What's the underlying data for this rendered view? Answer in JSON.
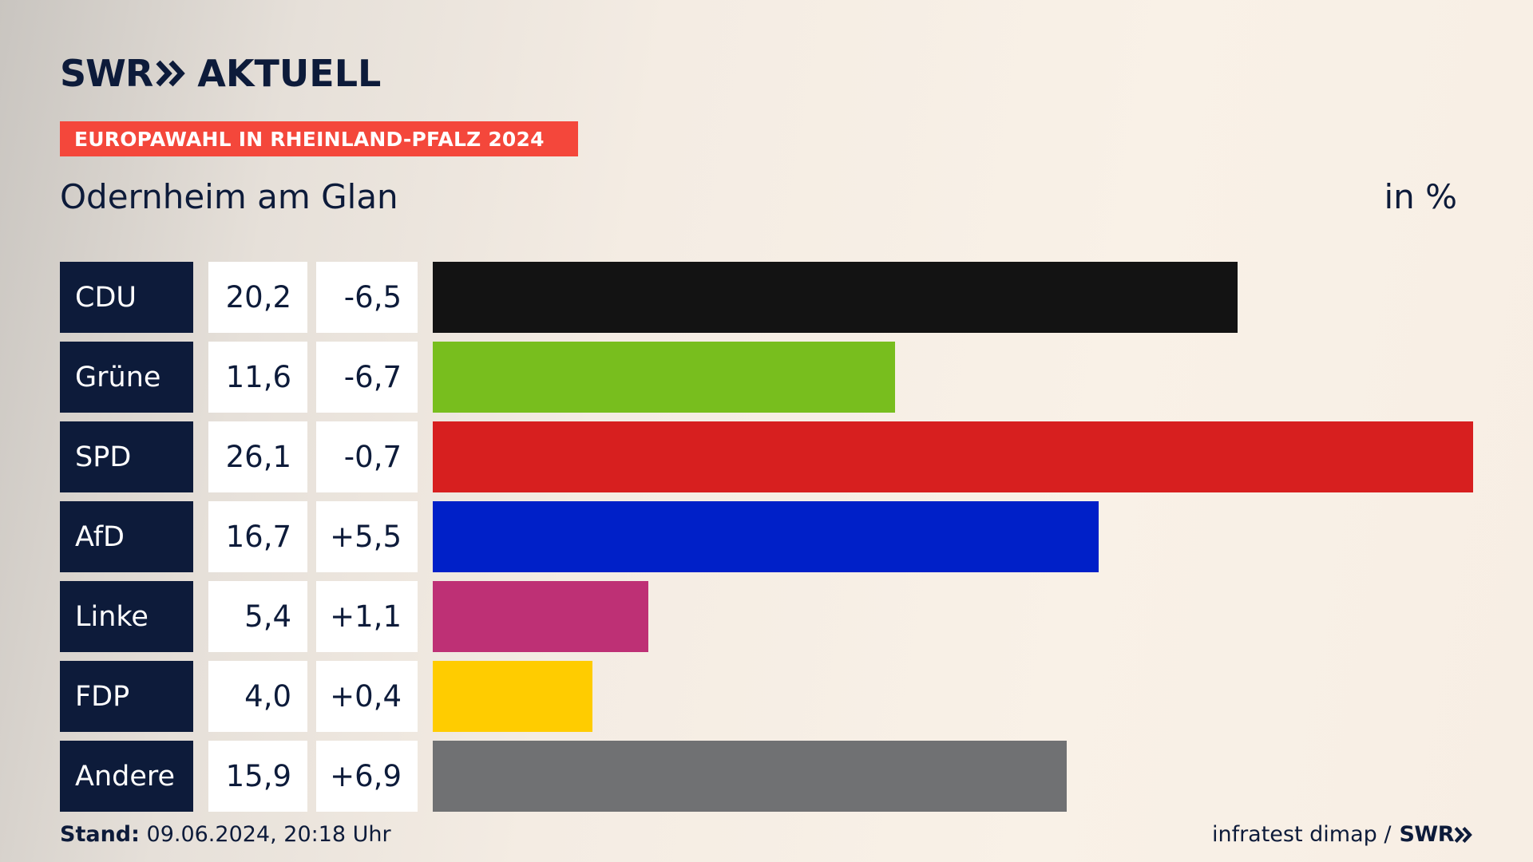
{
  "header": {
    "logo_swr": "SWR",
    "logo_aktuell": "AKTUELL",
    "kicker": "EUROPAWAHL IN RHEINLAND-PFALZ 2024",
    "subtitle": "Odernheim am Glan",
    "unit": "in %"
  },
  "footer": {
    "stand_label": "Stand:",
    "stand_value": "09.06.2024, 20:18 Uhr",
    "source": "infratest dimap /",
    "source_logo": "SWR"
  },
  "colors": {
    "navy": "#0d1b3a",
    "kicker_red": "#f4473b"
  },
  "chart_data": {
    "type": "bar",
    "orientation": "horizontal",
    "title": "Odernheim am Glan",
    "unit": "in %",
    "categories": [
      "CDU",
      "Grüne",
      "SPD",
      "AfD",
      "Linke",
      "FDP",
      "Andere"
    ],
    "values": [
      20.2,
      11.6,
      26.1,
      16.7,
      5.4,
      4.0,
      15.9
    ],
    "labels": [
      "20,2",
      "11,6",
      "26,1",
      "16,7",
      "5,4",
      "4,0",
      "15,9"
    ],
    "changes": [
      -6.5,
      -6.7,
      -0.7,
      5.5,
      1.1,
      0.4,
      6.9
    ],
    "change_labels": [
      "-6,5",
      "-6,7",
      "-0,7",
      "+5,5",
      "+1,1",
      "+0,4",
      "+6,9"
    ],
    "bar_colors": [
      "#131313",
      "#78be1e",
      "#d71f1f",
      "#0020c8",
      "#be3075",
      "#ffcc00",
      "#707173"
    ],
    "xlim": [
      0,
      26.1
    ],
    "grid": false,
    "legend": "none"
  }
}
